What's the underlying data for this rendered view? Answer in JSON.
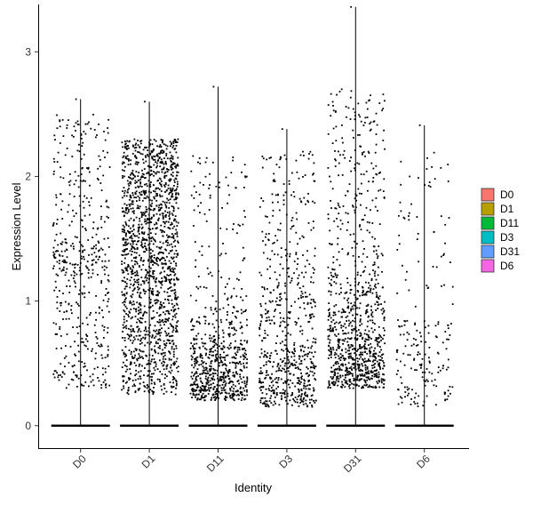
{
  "chart_data": {
    "type": "scatter",
    "subtype": "violin-jitter",
    "xlabel": "Identity",
    "ylabel": "Expression Level",
    "ylim": [
      -0.18,
      3.38
    ],
    "yticks": [
      0,
      1,
      2,
      3
    ],
    "categories": [
      "D0",
      "D1",
      "D11",
      "D3",
      "D31",
      "D6"
    ],
    "x_tick_rotation": -45,
    "grid": false,
    "legend": {
      "position": "right",
      "entries": [
        {
          "label": "D0",
          "color": "#F8766D"
        },
        {
          "label": "D1",
          "color": "#B79F00"
        },
        {
          "label": "D11",
          "color": "#00BA38"
        },
        {
          "label": "D3",
          "color": "#00BFC4"
        },
        {
          "label": "D31",
          "color": "#619CFF"
        },
        {
          "label": "D6",
          "color": "#F564E3"
        }
      ]
    },
    "groups": [
      {
        "name": "D0",
        "max": 2.62,
        "point_count": 480,
        "central_range": [
          0.25,
          2.5
        ]
      },
      {
        "name": "D1",
        "max": 2.6,
        "point_count": 1600,
        "central_range": [
          0.2,
          2.35
        ]
      },
      {
        "name": "D11",
        "max": 2.72,
        "point_count": 700,
        "central_range": [
          0.2,
          1.3
        ]
      },
      {
        "name": "D3",
        "max": 2.38,
        "point_count": 650,
        "central_range": [
          0.15,
          1.7
        ]
      },
      {
        "name": "D31",
        "max": 3.36,
        "point_count": 950,
        "central_range": [
          0.25,
          1.4
        ]
      },
      {
        "name": "D6",
        "max": 2.41,
        "point_count": 200,
        "central_range": [
          0.15,
          1.6
        ]
      }
    ]
  }
}
